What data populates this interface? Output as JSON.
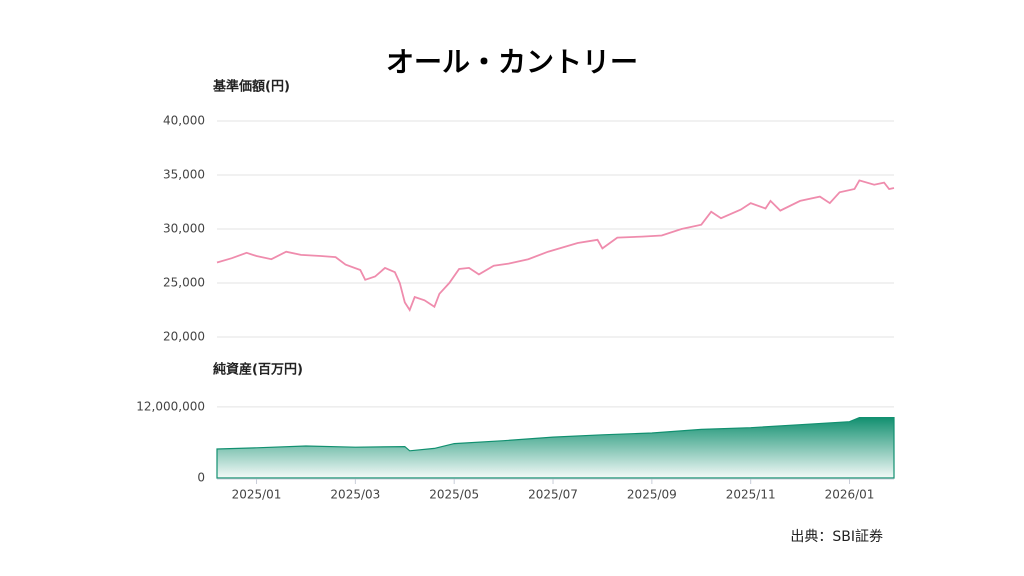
{
  "title": "オール・カントリー",
  "source": "出典：SBI証券",
  "chart_data": [
    {
      "type": "line",
      "y_label": "基準価額(円)",
      "color": "#ef8cad",
      "x": [
        -0.8,
        -0.5,
        -0.2,
        0.0,
        0.3,
        0.6,
        0.9,
        1.3,
        1.6,
        1.8,
        2.1,
        2.2,
        2.4,
        2.6,
        2.8,
        2.9,
        3.0,
        3.1,
        3.2,
        3.4,
        3.6,
        3.7,
        3.9,
        4.1,
        4.3,
        4.5,
        4.8,
        5.1,
        5.5,
        5.9,
        6.2,
        6.5,
        6.9,
        7.0,
        7.3,
        7.8,
        8.2,
        8.6,
        9.0,
        9.2,
        9.4,
        9.8,
        10.0,
        10.3,
        10.4,
        10.6,
        11.0,
        11.4,
        11.6,
        11.8,
        12.1,
        12.2,
        12.5,
        12.7,
        12.8,
        12.9
      ],
      "values": [
        26900,
        27300,
        27800,
        27500,
        27200,
        27900,
        27600,
        27500,
        27400,
        26700,
        26200,
        25300,
        25600,
        26400,
        26000,
        25000,
        23200,
        22500,
        23700,
        23400,
        22800,
        24000,
        25000,
        26300,
        26400,
        25800,
        26600,
        26800,
        27200,
        27900,
        28300,
        28700,
        29000,
        28200,
        29200,
        29300,
        29400,
        30000,
        30400,
        31600,
        31000,
        31800,
        32400,
        31900,
        32600,
        31700,
        32600,
        33000,
        32400,
        33400,
        33700,
        34500,
        34100,
        34300,
        33700,
        33800
      ],
      "xlim": [
        -0.8,
        12.9
      ],
      "ylim": [
        20000,
        40000
      ],
      "yticks": [
        {
          "value": 20000,
          "label": "20,000"
        },
        {
          "value": 25000,
          "label": "25,000"
        },
        {
          "value": 30000,
          "label": "30,000"
        },
        {
          "value": 35000,
          "label": "35,000"
        },
        {
          "value": 40000,
          "label": "40,000"
        }
      ],
      "grid": true
    },
    {
      "type": "area",
      "y_label": "純資産(百万円)",
      "color": "#129070",
      "x": [
        -0.8,
        0.0,
        1.0,
        2.0,
        3.0,
        3.1,
        3.6,
        4.0,
        5.0,
        6.0,
        7.0,
        8.0,
        9.0,
        10.0,
        11.0,
        12.0,
        12.2,
        12.9
      ],
      "values": [
        4900000,
        5100000,
        5400000,
        5200000,
        5300000,
        4600000,
        5000000,
        5800000,
        6300000,
        6900000,
        7300000,
        7600000,
        8200000,
        8500000,
        9000000,
        9500000,
        10200000,
        10200000
      ],
      "xlim": [
        -0.8,
        12.9
      ],
      "ylim": [
        0,
        13000000
      ],
      "yticks": [
        0,
        {
          "value": 12000000,
          "label": "12,000,000"
        }
      ],
      "xticks": [
        {
          "value": 0,
          "label": "2025/01"
        },
        {
          "value": 2,
          "label": "2025/03"
        },
        {
          "value": 4,
          "label": "2025/05"
        },
        {
          "value": 6,
          "label": "2025/07"
        },
        {
          "value": 8,
          "label": "2025/09"
        },
        {
          "value": 10,
          "label": "2025/11"
        },
        {
          "value": 12,
          "label": "2026/01"
        }
      ],
      "grid": true
    }
  ]
}
